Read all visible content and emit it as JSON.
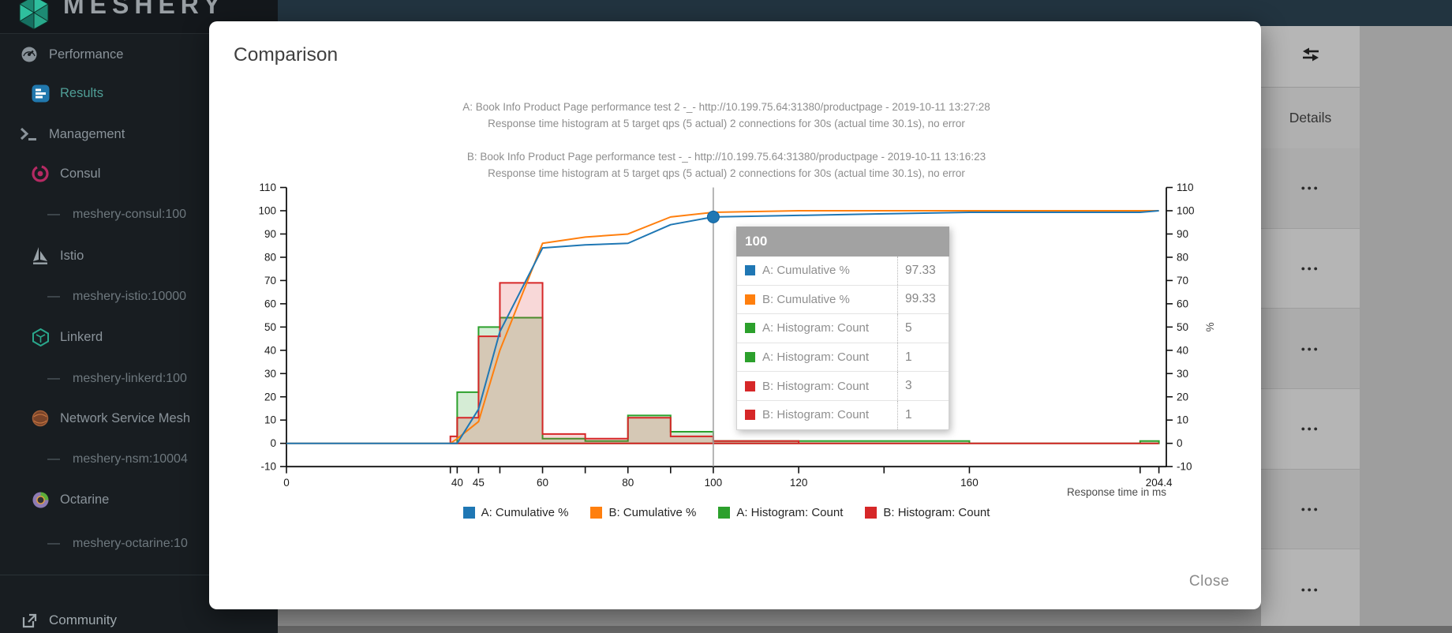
{
  "sidebar": {
    "logo_text": "MESHERY",
    "items": [
      {
        "label": "Performance",
        "icon": "performance-icon",
        "level": 1,
        "active": false
      },
      {
        "label": "Results",
        "icon": "results-icon",
        "level": 2,
        "active": true
      },
      {
        "label": "Management",
        "icon": "management-icon",
        "level": 1,
        "active": false
      },
      {
        "label": "Consul",
        "icon": "consul-icon",
        "level": 2,
        "active": false
      },
      {
        "label": "meshery-consul:100",
        "icon": "dash-icon",
        "level": 3,
        "active": false
      },
      {
        "label": "Istio",
        "icon": "istio-icon",
        "level": 2,
        "active": false
      },
      {
        "label": "meshery-istio:10000",
        "icon": "dash-icon",
        "level": 3,
        "active": false
      },
      {
        "label": "Linkerd",
        "icon": "linkerd-icon",
        "level": 2,
        "active": false
      },
      {
        "label": "meshery-linkerd:100",
        "icon": "dash-icon",
        "level": 3,
        "active": false
      },
      {
        "label": "Network Service Mesh",
        "icon": "nsm-icon",
        "level": 2,
        "active": false
      },
      {
        "label": "meshery-nsm:10004",
        "icon": "dash-icon",
        "level": 3,
        "active": false
      },
      {
        "label": "Octarine",
        "icon": "octarine-icon",
        "level": 2,
        "active": false
      },
      {
        "label": "meshery-octarine:10",
        "icon": "dash-icon",
        "level": 3,
        "active": false
      }
    ],
    "footer_item": {
      "label": "Community",
      "icon": "external-link-icon"
    }
  },
  "modal": {
    "title": "Comparison",
    "close_label": "Close",
    "chart_titles": [
      "A: Book Info Product Page performance test 2 -_- http://10.199.75.64:31380/productpage - 2019-10-11 13:27:28",
      "Response time histogram at 5 target qps (5 actual) 2 connections for 30s (actual time 30.1s), no error",
      "B: Book Info Product Page performance test -_- http://10.199.75.64:31380/productpage - 2019-10-11 13:16:23",
      "Response time histogram at 5 target qps (5 actual) 2 connections for 30s (actual time 30.1s), no error"
    ]
  },
  "tooltip": {
    "header": "100",
    "rows": [
      {
        "label": "A: Cumulative %",
        "value": "97.33",
        "color": "#1F77B4"
      },
      {
        "label": "B: Cumulative %",
        "value": "99.33",
        "color": "#FF7F0E"
      },
      {
        "label": "A: Histogram: Count",
        "value": "5",
        "color": "#2CA02C"
      },
      {
        "label": "A: Histogram: Count",
        "value": "1",
        "color": "#2CA02C"
      },
      {
        "label": "B: Histogram: Count",
        "value": "3",
        "color": "#D62728"
      },
      {
        "label": "B: Histogram: Count",
        "value": "1",
        "color": "#D62728"
      }
    ]
  },
  "results_table": {
    "header": "Details",
    "toolbar_icon": "compare-arrows-icon",
    "row_action_icon": "more-horizontal-icon",
    "rows_count": 6
  },
  "chart_data": {
    "type": "histogram+line",
    "xlabel": "Response time in ms",
    "ylabel": "%",
    "xlim": [
      0,
      206.2
    ],
    "ylim": [
      -10,
      110
    ],
    "x_ticks_labeled": [
      0,
      40,
      45,
      60,
      80,
      100,
      120,
      160,
      204.4
    ],
    "x_ticks_minor": [
      38.4,
      50,
      70,
      90,
      140,
      200
    ],
    "y_ticks": [
      -10,
      0,
      10,
      20,
      30,
      40,
      50,
      60,
      70,
      80,
      90,
      100,
      110
    ],
    "bucket_edges": [
      38.4,
      40,
      45,
      50,
      60,
      70,
      80,
      90,
      100,
      120,
      140,
      160,
      200,
      204.4
    ],
    "series": [
      {
        "name": "A: Histogram: Count",
        "type": "histogram",
        "color": "#2CA02C",
        "fill_opacity": 0.2,
        "counts": [
          0,
          22,
          50,
          54,
          2,
          1,
          12,
          5,
          1,
          1,
          1,
          0,
          1
        ]
      },
      {
        "name": "B: Histogram: Count",
        "type": "histogram",
        "color": "#D62728",
        "fill_opacity": 0.18,
        "counts": [
          3,
          11,
          46,
          69,
          4,
          2,
          11,
          3,
          1,
          0,
          0,
          0,
          0
        ]
      },
      {
        "name": "B: Cumulative %",
        "type": "line",
        "color": "#FF7F0E",
        "points": [
          [
            0,
            0
          ],
          [
            38.4,
            0
          ],
          [
            40,
            2
          ],
          [
            45,
            9.33
          ],
          [
            50,
            40
          ],
          [
            60,
            86
          ],
          [
            70,
            88.67
          ],
          [
            80,
            90
          ],
          [
            90,
            97.33
          ],
          [
            100,
            99.33
          ],
          [
            120,
            100
          ],
          [
            204.4,
            100
          ]
        ]
      },
      {
        "name": "A: Cumulative %",
        "type": "line",
        "color": "#1F77B4",
        "points": [
          [
            0,
            0
          ],
          [
            38.4,
            0
          ],
          [
            40,
            0
          ],
          [
            45,
            14.67
          ],
          [
            50,
            48
          ],
          [
            60,
            84
          ],
          [
            70,
            85.33
          ],
          [
            80,
            86
          ],
          [
            90,
            94
          ],
          [
            100,
            97.33
          ],
          [
            120,
            98
          ],
          [
            140,
            98.67
          ],
          [
            160,
            99.33
          ],
          [
            200,
            99.33
          ],
          [
            204.4,
            100
          ]
        ]
      }
    ],
    "legend": [
      "A: Cumulative %",
      "B: Cumulative %",
      "A: Histogram: Count",
      "B: Histogram: Count"
    ],
    "legend_colors": [
      "#1F77B4",
      "#FF7F0E",
      "#2CA02C",
      "#D62728"
    ],
    "legend_position": "bottom",
    "guideline_x": 100,
    "marker": {
      "x": 100,
      "y": 97.33,
      "color": "#1F77B4"
    }
  }
}
